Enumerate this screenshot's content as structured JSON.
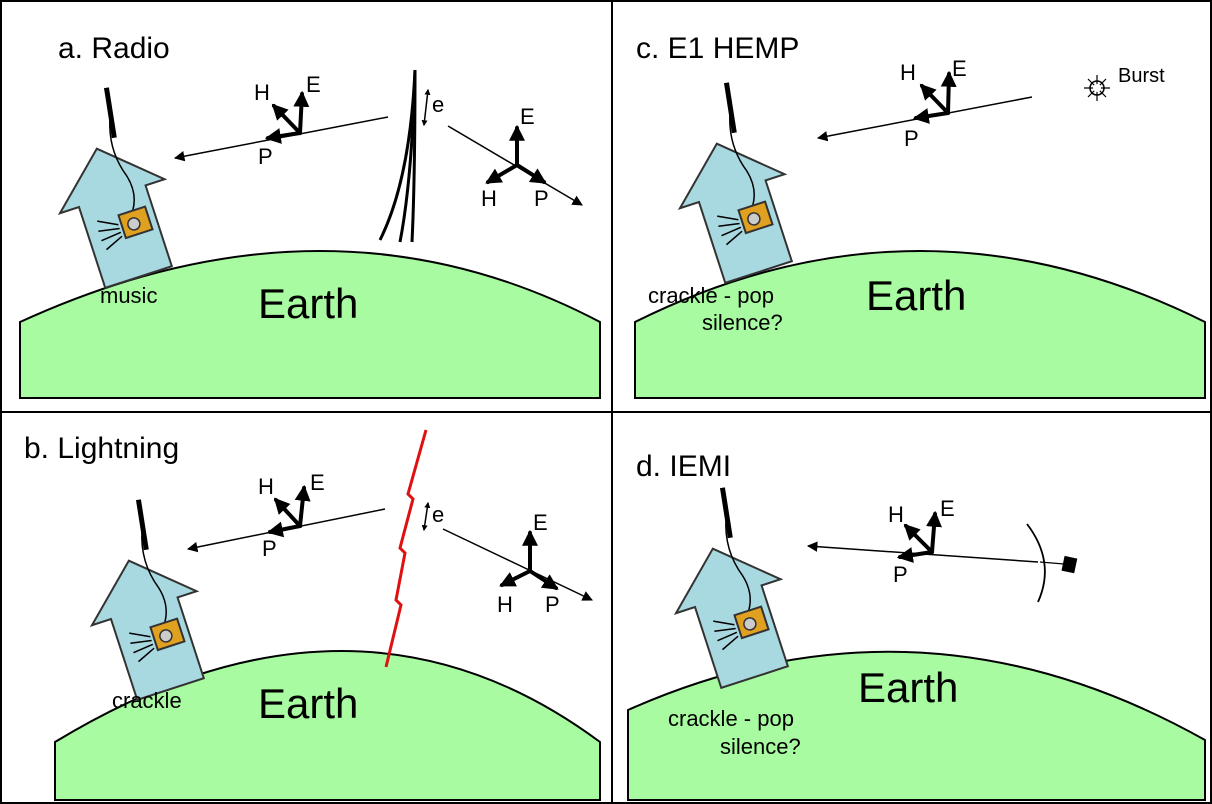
{
  "panels": {
    "radio": {
      "title": "a. Radio",
      "earth": "Earth",
      "house_caption": "music",
      "vector_left": {
        "h": "H",
        "e": "E",
        "p": "P"
      },
      "vector_right": {
        "h": "H",
        "e": "E",
        "p": "P"
      },
      "e_label": "e"
    },
    "hemp": {
      "title": "c. E1 HEMP",
      "earth": "Earth",
      "house_caption_line1": "crackle - pop",
      "house_caption_line2": "silence?",
      "vector": {
        "h": "H",
        "e": "E",
        "p": "P"
      },
      "burst_label": "Burst"
    },
    "lightning": {
      "title": "b. Lightning",
      "earth": "Earth",
      "house_caption": "crackle",
      "vector_left": {
        "h": "H",
        "e": "E",
        "p": "P"
      },
      "vector_right": {
        "h": "H",
        "e": "E",
        "p": "P"
      },
      "e_label": "e",
      "bolt_color": "#e01010"
    },
    "iemi": {
      "title": "d. IEMI",
      "earth": "Earth",
      "house_caption_line1": "crackle - pop",
      "house_caption_line2": "silence?",
      "vector": {
        "h": "H",
        "e": "E",
        "p": "P"
      }
    }
  },
  "colors": {
    "earth_fill": "#a8fba0",
    "house_fill": "#a8d8e0",
    "radio_body": "#e0a020",
    "lightning": "#e01010"
  }
}
